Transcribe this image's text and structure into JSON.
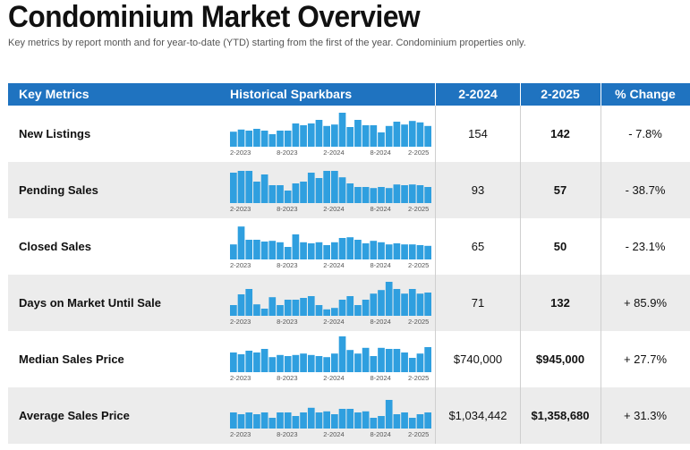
{
  "page": {
    "title": "Condominium Market Overview",
    "subtitle": "Key metrics by report month and for year-to-date (YTD) starting from the first of the year. Condominium properties only."
  },
  "table": {
    "headers": {
      "metric": "Key Metrics",
      "spark": "Historical Sparkbars",
      "col1": "2-2024",
      "col2": "2-2025",
      "col3": "% Change"
    },
    "spark_axis_labels": [
      "2-2023",
      "8-2023",
      "2-2024",
      "8-2024",
      "2-2025"
    ],
    "bar_color": "#2f9fdf",
    "header_color": "#1f73c0",
    "rows": [
      {
        "metric": "New Listings",
        "v2024": "154",
        "v2025": "142",
        "change": "- 7.8%",
        "spark": [
          0.42,
          0.48,
          0.45,
          0.5,
          0.45,
          0.35,
          0.45,
          0.45,
          0.65,
          0.6,
          0.65,
          0.75,
          0.58,
          0.62,
          0.95,
          0.55,
          0.75,
          0.6,
          0.6,
          0.4,
          0.58,
          0.7,
          0.62,
          0.72,
          0.68,
          0.58
        ]
      },
      {
        "metric": "Pending Sales",
        "v2024": "93",
        "v2025": "57",
        "change": "- 38.7%",
        "spark": [
          0.85,
          0.9,
          0.9,
          0.6,
          0.8,
          0.5,
          0.5,
          0.35,
          0.55,
          0.6,
          0.85,
          0.7,
          0.9,
          0.9,
          0.72,
          0.55,
          0.45,
          0.45,
          0.42,
          0.45,
          0.42,
          0.52,
          0.5,
          0.52,
          0.5,
          0.45
        ]
      },
      {
        "metric": "Closed Sales",
        "v2024": "65",
        "v2025": "50",
        "change": "- 23.1%",
        "spark": [
          0.42,
          0.92,
          0.55,
          0.55,
          0.5,
          0.52,
          0.48,
          0.35,
          0.7,
          0.48,
          0.45,
          0.48,
          0.4,
          0.48,
          0.6,
          0.62,
          0.55,
          0.45,
          0.52,
          0.48,
          0.42,
          0.45,
          0.42,
          0.42,
          0.4,
          0.38
        ]
      },
      {
        "metric": "Days on Market Until Sale",
        "v2024": "71",
        "v2025": "132",
        "change": "+ 85.9%",
        "spark": [
          0.3,
          0.6,
          0.75,
          0.32,
          0.2,
          0.52,
          0.3,
          0.45,
          0.45,
          0.5,
          0.55,
          0.3,
          0.18,
          0.22,
          0.45,
          0.55,
          0.3,
          0.45,
          0.62,
          0.72,
          0.95,
          0.75,
          0.62,
          0.75,
          0.62,
          0.65
        ]
      },
      {
        "metric": "Median Sales Price",
        "v2024": "$740,000",
        "v2025": "$945,000",
        "change": "+ 27.7%",
        "spark": [
          0.55,
          0.5,
          0.6,
          0.55,
          0.65,
          0.42,
          0.48,
          0.45,
          0.48,
          0.52,
          0.48,
          0.45,
          0.42,
          0.52,
          1.0,
          0.62,
          0.52,
          0.68,
          0.45,
          0.68,
          0.65,
          0.65,
          0.55,
          0.4,
          0.52,
          0.7
        ]
      },
      {
        "metric": "Average Sales Price",
        "v2024": "$1,034,442",
        "v2025": "$1,358,680",
        "change": "+ 31.3%",
        "spark": [
          0.45,
          0.4,
          0.45,
          0.4,
          0.45,
          0.3,
          0.45,
          0.45,
          0.35,
          0.45,
          0.58,
          0.45,
          0.48,
          0.4,
          0.55,
          0.55,
          0.45,
          0.48,
          0.3,
          0.35,
          0.8,
          0.4,
          0.45,
          0.3,
          0.4,
          0.45
        ]
      }
    ]
  }
}
